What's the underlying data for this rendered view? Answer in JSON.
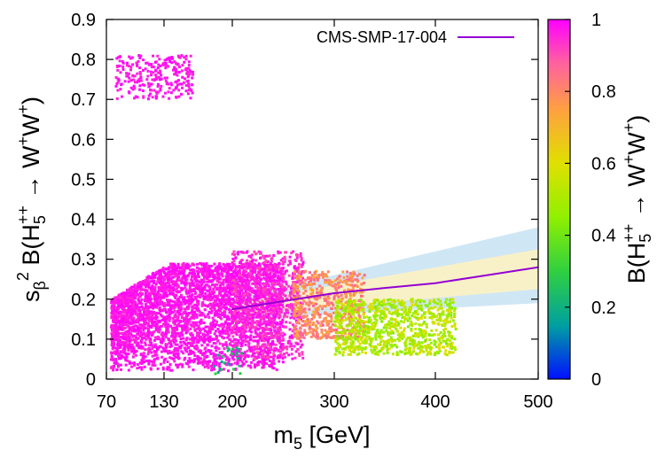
{
  "chart_data": {
    "type": "scatter",
    "xlabel": {
      "main": "m",
      "sub": "5",
      "rest": " [GeV]"
    },
    "ylabel": {
      "s": "s",
      "beta": "β",
      "sq": "2",
      "b": " B(H",
      "h_sub": "5",
      "h_sup": "++",
      "arrow": " → W",
      "w_sup1": "+",
      "w2": "W",
      "w_sup2": "+",
      "close": ")"
    },
    "colorbar_label": {
      "b": "B(H",
      "h_sub": "5",
      "h_sup": "++",
      "arrow": " → W",
      "w_sup1": "+",
      "w2": "W",
      "w_sup2": "+",
      "close": ")"
    },
    "xlim": [
      70,
      500
    ],
    "ylim": [
      0,
      0.9
    ],
    "xticks": [
      70,
      130,
      200,
      300,
      400,
      500
    ],
    "yticks": [
      0,
      0.1,
      0.2,
      0.3,
      0.4,
      0.5,
      0.6,
      0.7,
      0.8,
      0.9
    ],
    "colorbar_range": [
      0,
      1
    ],
    "colorbar_ticks": [
      0,
      0.2,
      0.4,
      0.6,
      0.8,
      1
    ],
    "legend": {
      "label": "CMS-SMP-17-004",
      "color": "#9400d3"
    },
    "limit_line": {
      "name": "CMS-SMP-17-004",
      "x": [
        200,
        250,
        300,
        350,
        400,
        450,
        500
      ],
      "y": [
        0.175,
        0.195,
        0.215,
        0.228,
        0.24,
        0.26,
        0.28
      ]
    },
    "band_2sigma": {
      "x": [
        200,
        500
      ],
      "lower": [
        0.15,
        0.19
      ],
      "upper": [
        0.2,
        0.38
      ]
    },
    "band_1sigma": {
      "x": [
        200,
        500
      ],
      "lower": [
        0.16,
        0.225
      ],
      "upper": [
        0.19,
        0.325
      ]
    },
    "scatter_regions": [
      {
        "x": [
          75,
          250
        ],
        "y": [
          0.02,
          0.29
        ],
        "color_value": [
          0.95,
          1.0
        ],
        "count": 3600
      },
      {
        "x": [
          200,
          270
        ],
        "y": [
          0.05,
          0.32
        ],
        "color_value": [
          0.9,
          1.0
        ],
        "count": 700
      },
      {
        "x": [
          260,
          330
        ],
        "y": [
          0.1,
          0.27
        ],
        "color_value": [
          0.72,
          0.88
        ],
        "count": 600
      },
      {
        "x": [
          300,
          420
        ],
        "y": [
          0.06,
          0.2
        ],
        "color_value": [
          0.42,
          0.62
        ],
        "count": 900
      },
      {
        "x": [
          80,
          160
        ],
        "y": [
          0.7,
          0.81
        ],
        "color_value": [
          0.95,
          1.0
        ],
        "count": 260
      },
      {
        "x": [
          180,
          210
        ],
        "y": [
          0.01,
          0.08
        ],
        "color_value": [
          0.15,
          0.3
        ],
        "count": 25
      }
    ]
  }
}
